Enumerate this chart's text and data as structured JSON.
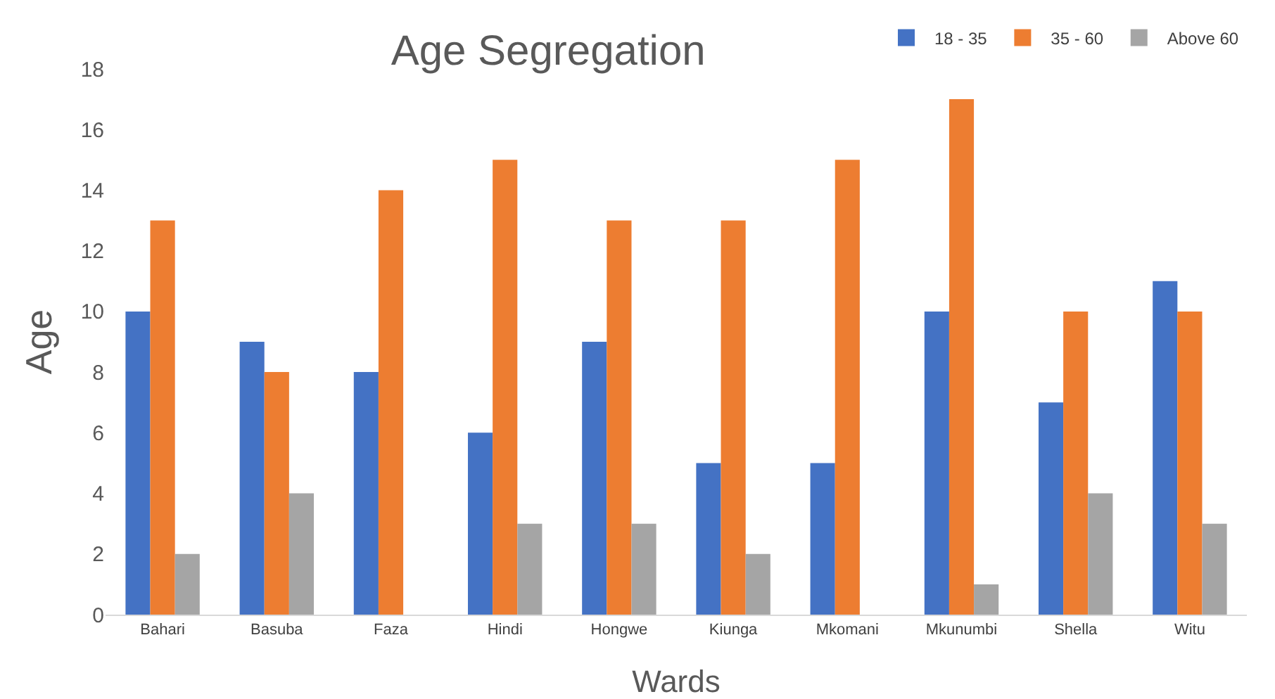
{
  "chart_data": {
    "type": "bar",
    "title": "Age Segregation",
    "xlabel": "Wards",
    "ylabel": "Age",
    "categories": [
      "Bahari",
      "Basuba",
      "Faza",
      "Hindi",
      "Hongwe",
      "Kiunga",
      "Mkomani",
      "Mkunumbi",
      "Shella",
      "Witu"
    ],
    "series": [
      {
        "name": "18 - 35",
        "color": "#4472c4",
        "values": [
          10,
          9,
          8,
          6,
          9,
          5,
          5,
          10,
          7,
          11
        ]
      },
      {
        "name": "35 - 60",
        "color": "#ed7d31",
        "values": [
          13,
          8,
          14,
          15,
          13,
          13,
          15,
          17,
          10,
          10
        ]
      },
      {
        "name": "Above 60",
        "color": "#a5a5a5",
        "values": [
          2,
          4,
          0,
          3,
          3,
          2,
          0,
          1,
          4,
          3
        ]
      }
    ],
    "ylim": [
      0,
      18
    ],
    "yticks": [
      0,
      2,
      4,
      6,
      8,
      10,
      12,
      14,
      16,
      18
    ],
    "grid": false,
    "legend": "top right"
  }
}
